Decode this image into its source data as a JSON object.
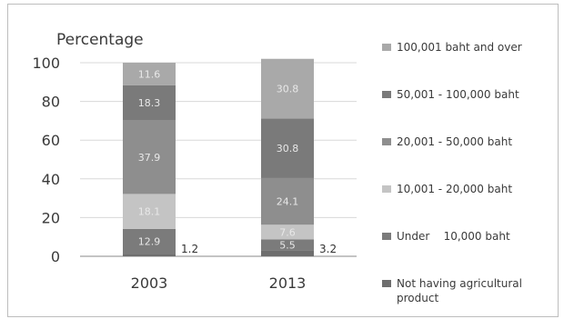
{
  "chart_data": {
    "type": "bar",
    "stacked": true,
    "ylabel": "Percentage",
    "ylim": [
      0,
      100
    ],
    "yticks": [
      0,
      20,
      40,
      60,
      80,
      100
    ],
    "categories": [
      "2003",
      "2013"
    ],
    "grid": true,
    "legend_position": "right",
    "series": [
      {
        "name": "Not having agricultural product",
        "values": [
          1.2,
          3.2
        ],
        "color": "#6e6e6e",
        "labels": [
          "1.2",
          "3.2"
        ]
      },
      {
        "name": "Under    10,000 baht",
        "values": [
          12.9,
          5.5
        ],
        "color": "#7b7b7b",
        "labels": [
          "12.9",
          "5.5"
        ]
      },
      {
        "name": "10,001 - 20,000 baht",
        "values": [
          18.1,
          7.6
        ],
        "color": "#c4c4c4",
        "labels": [
          "18.1",
          "7.6"
        ]
      },
      {
        "name": "20,001 - 50,000 baht",
        "values": [
          37.9,
          24.1
        ],
        "color": "#8e8e8e",
        "labels": [
          "37.9",
          "24.1"
        ]
      },
      {
        "name": "50,001 - 100,000 baht",
        "values": [
          18.3,
          30.8
        ],
        "color": "#7a7a7a",
        "labels": [
          "18.3",
          "30.8"
        ]
      },
      {
        "name": "100,001 baht and over",
        "values": [
          11.6,
          30.8
        ],
        "color": "#a9a9a9",
        "labels": [
          "11.6",
          "30.8"
        ]
      }
    ]
  }
}
